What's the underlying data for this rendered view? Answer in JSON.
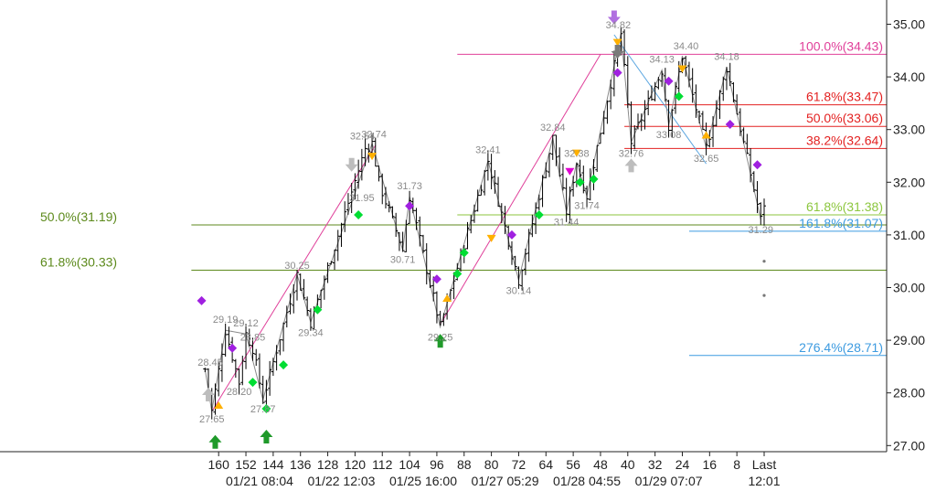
{
  "chart_data": {
    "type": "candlestick",
    "title": "",
    "ylim": [
      26.75,
      35.3
    ],
    "y_ticks": [
      "35.00",
      "34.00",
      "33.00",
      "32.00",
      "31.00",
      "30.00",
      "29.00",
      "28.00",
      "27.00"
    ],
    "x_bars_range": [
      164,
      -4
    ],
    "x_ticks": [
      {
        "bar": 160,
        "label": "160"
      },
      {
        "bar": 152,
        "label": "152"
      },
      {
        "bar": 144,
        "label": "144"
      },
      {
        "bar": 136,
        "label": "136"
      },
      {
        "bar": 128,
        "label": "128"
      },
      {
        "bar": 120,
        "label": "120"
      },
      {
        "bar": 112,
        "label": "112"
      },
      {
        "bar": 104,
        "label": "104"
      },
      {
        "bar": 96,
        "label": "96"
      },
      {
        "bar": 88,
        "label": "88"
      },
      {
        "bar": 80,
        "label": "80"
      },
      {
        "bar": 72,
        "label": "72"
      },
      {
        "bar": 64,
        "label": "64"
      },
      {
        "bar": 56,
        "label": "56"
      },
      {
        "bar": 48,
        "label": "48"
      },
      {
        "bar": 40,
        "label": "40"
      },
      {
        "bar": 32,
        "label": "32"
      },
      {
        "bar": 24,
        "label": "24"
      },
      {
        "bar": 16,
        "label": "16"
      },
      {
        "bar": 8,
        "label": "8"
      },
      {
        "bar": 0,
        "label": "Last"
      }
    ],
    "date_labels": [
      {
        "bar": 148,
        "label": "01/21 08:04"
      },
      {
        "bar": 124,
        "label": "01/22 12:03"
      },
      {
        "bar": 100,
        "label": "01/25 16:00"
      },
      {
        "bar": 76,
        "label": "01/27 05:29"
      },
      {
        "bar": 52,
        "label": "01/28 04:55"
      },
      {
        "bar": 28,
        "label": "01/29 07:07"
      },
      {
        "bar": 0,
        "label": "12:01"
      }
    ],
    "swing_points": [
      {
        "bar": 164,
        "price": 28.45,
        "label": "28.45"
      },
      {
        "bar": 158,
        "price": 29.19,
        "label": "29.19"
      },
      {
        "bar": 162,
        "price": 27.65,
        "label": "27.65"
      },
      {
        "bar": 152,
        "price": 29.12,
        "label": "29.12"
      },
      {
        "bar": 150,
        "price": 28.85,
        "label": "28.85"
      },
      {
        "bar": 154,
        "price": 28.2,
        "label": "28.20"
      },
      {
        "bar": 147,
        "price": 27.87,
        "label": "27.87"
      },
      {
        "bar": 137,
        "price": 30.25,
        "label": "30.25"
      },
      {
        "bar": 133,
        "price": 29.34,
        "label": "29.34"
      },
      {
        "bar": 117,
        "price": 32.64,
        "label": "32.64"
      },
      {
        "bar": 115,
        "price": 32.74,
        "label": "32.74"
      },
      {
        "bar": 118,
        "price": 31.95,
        "label": "31.95"
      },
      {
        "bar": 104,
        "price": 31.73,
        "label": "31.73"
      },
      {
        "bar": 106,
        "price": 30.71,
        "label": "30.71"
      },
      {
        "bar": 95,
        "price": 29.25,
        "label": "29.25"
      },
      {
        "bar": 81,
        "price": 32.41,
        "label": "32.41"
      },
      {
        "bar": 72,
        "price": 30.14,
        "label": "30.14"
      },
      {
        "bar": 62,
        "price": 32.84,
        "label": "32.84"
      },
      {
        "bar": 55,
        "price": 32.38,
        "label": "32.38"
      },
      {
        "bar": 58,
        "price": 31.44,
        "label": "31.44"
      },
      {
        "bar": 52,
        "price": 31.74,
        "label": "31.74"
      },
      {
        "bar": 42,
        "price": 34.82,
        "label": "34.82"
      },
      {
        "bar": 30,
        "price": 34.13,
        "label": "34.13"
      },
      {
        "bar": 24,
        "price": 34.4,
        "label": "34.40"
      },
      {
        "bar": 39,
        "price": 32.76,
        "label": "32.76"
      },
      {
        "bar": 28,
        "price": 33.08,
        "label": "33.08"
      },
      {
        "bar": 11,
        "price": 34.18,
        "label": "34.18"
      },
      {
        "bar": 17,
        "price": 32.65,
        "label": "32.65"
      },
      {
        "bar": 1,
        "price": 31.29,
        "label": "31.29"
      }
    ],
    "fib_levels": [
      {
        "label": "100.0%(34.43)",
        "price": 34.43,
        "color": "#e0409a",
        "from_bar": 90
      },
      {
        "label": "61.8%(33.47)",
        "price": 33.47,
        "color": "#e32020",
        "from_bar": 41
      },
      {
        "label": "50.0%(33.06)",
        "price": 33.06,
        "color": "#e32020",
        "from_bar": 41
      },
      {
        "label": "38.2%(32.64)",
        "price": 32.64,
        "color": "#e32020",
        "from_bar": 41
      },
      {
        "label": "61.8%(31.38)",
        "price": 31.38,
        "color": "#8cc63e",
        "from_bar": 90
      },
      {
        "label": "50.0%(31.19)",
        "price": 31.19,
        "color": "#5d8a1c",
        "from_bar": 168
      },
      {
        "label": "61.8%(30.33)",
        "price": 30.33,
        "color": "#5d8a1c",
        "from_bar": 168
      },
      {
        "label": "161.8%(31.07)",
        "price": 31.07,
        "color": "#3d9be0",
        "from_bar": 22
      },
      {
        "label": "276.4%(28.71)",
        "price": 28.71,
        "color": "#3d9be0",
        "from_bar": 22
      }
    ],
    "colors": {
      "candle": "#000000",
      "zigzag": "#8a8a8a",
      "trend_pink": "#e0409a",
      "trend_blue": "#5aa5e0",
      "marker_purple": "#a020e0",
      "marker_green": "#00dd33",
      "marker_orange": "#ffb000",
      "marker_magenta": "#e000d0",
      "arrow_green": "#1f9a2a",
      "arrow_gray": "#bdbdbd",
      "arrow_purple": "#b070e0",
      "arrow_darkgray": "#7a7a7a"
    }
  }
}
